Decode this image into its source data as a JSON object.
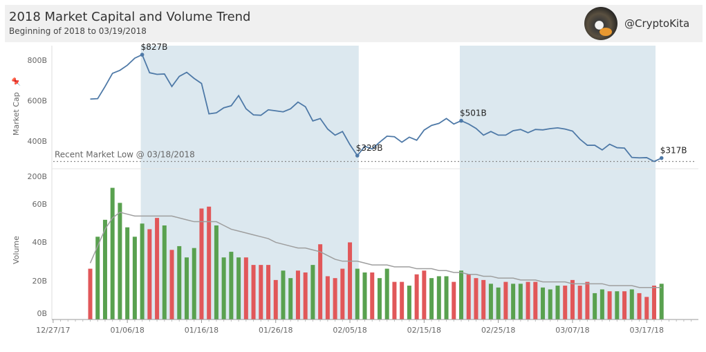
{
  "header": {
    "title": "2018 Market Capital and Volume Trend",
    "subtitle": "Beginning of 2018 to 03/19/2018",
    "handle": "@CryptoKita"
  },
  "chart_data": {
    "type": "line",
    "x_ticks": [
      "12/27/17",
      "01/06/18",
      "01/16/18",
      "01/26/18",
      "02/05/18",
      "02/15/18",
      "02/25/18",
      "03/07/18",
      "03/17/18"
    ],
    "market_cap": {
      "ylabel": "Market Cap",
      "y_ticks": [
        "400B",
        "600B",
        "800B"
      ],
      "start_date": "2018-01-01",
      "values": [
        608,
        610,
        670,
        735,
        750,
        775,
        810,
        827,
        738,
        730,
        732,
        670,
        720,
        740,
        710,
        685,
        535,
        540,
        565,
        575,
        625,
        560,
        530,
        528,
        555,
        550,
        545,
        560,
        593,
        570,
        500,
        512,
        460,
        430,
        448,
        383,
        329,
        375,
        362,
        395,
        425,
        422,
        395,
        420,
        405,
        455,
        478,
        488,
        512,
        485,
        501,
        485,
        463,
        430,
        448,
        430,
        430,
        452,
        458,
        442,
        458,
        456,
        462,
        466,
        460,
        450,
        410,
        380,
        380,
        357,
        385,
        368,
        366,
        320,
        318,
        319,
        300,
        317
      ],
      "annotations": [
        {
          "date": "2018-01-08",
          "label": "$827B"
        },
        {
          "date": "2018-02-06",
          "label": "$329B"
        },
        {
          "date": "2018-02-20",
          "label": "$501B"
        },
        {
          "date": "2018-03-19",
          "label": "$317B"
        }
      ],
      "reference_line": {
        "value": 300,
        "label": "Recent Market Low @ 03/18/2018"
      }
    },
    "volume": {
      "ylabel": "Volume",
      "y_ticks": [
        "0B",
        "20B",
        "40B",
        "60B",
        "200B"
      ],
      "up_color": "#59a14f",
      "down_color": "#e15759",
      "start_date": "2018-01-01",
      "bars": [
        {
          "v": 27,
          "d": "down"
        },
        {
          "v": 44,
          "d": "up"
        },
        {
          "v": 53,
          "d": "up"
        },
        {
          "v": 70,
          "d": "up"
        },
        {
          "v": 62,
          "d": "up"
        },
        {
          "v": 49,
          "d": "up"
        },
        {
          "v": 44,
          "d": "up"
        },
        {
          "v": 51,
          "d": "up"
        },
        {
          "v": 48,
          "d": "down"
        },
        {
          "v": 54,
          "d": "down"
        },
        {
          "v": 50,
          "d": "up"
        },
        {
          "v": 37,
          "d": "down"
        },
        {
          "v": 39,
          "d": "up"
        },
        {
          "v": 33,
          "d": "up"
        },
        {
          "v": 38,
          "d": "up"
        },
        {
          "v": 59,
          "d": "down"
        },
        {
          "v": 60,
          "d": "down"
        },
        {
          "v": 50,
          "d": "up"
        },
        {
          "v": 33,
          "d": "up"
        },
        {
          "v": 36,
          "d": "up"
        },
        {
          "v": 33,
          "d": "up"
        },
        {
          "v": 33,
          "d": "down"
        },
        {
          "v": 29,
          "d": "down"
        },
        {
          "v": 29,
          "d": "down"
        },
        {
          "v": 29,
          "d": "down"
        },
        {
          "v": 21,
          "d": "down"
        },
        {
          "v": 26,
          "d": "up"
        },
        {
          "v": 22,
          "d": "up"
        },
        {
          "v": 26,
          "d": "down"
        },
        {
          "v": 25,
          "d": "down"
        },
        {
          "v": 29,
          "d": "up"
        },
        {
          "v": 40,
          "d": "down"
        },
        {
          "v": 23,
          "d": "down"
        },
        {
          "v": 22,
          "d": "down"
        },
        {
          "v": 27,
          "d": "down"
        },
        {
          "v": 41,
          "d": "down"
        },
        {
          "v": 27,
          "d": "up"
        },
        {
          "v": 25,
          "d": "up"
        },
        {
          "v": 25,
          "d": "down"
        },
        {
          "v": 22,
          "d": "up"
        },
        {
          "v": 27,
          "d": "up"
        },
        {
          "v": 20,
          "d": "down"
        },
        {
          "v": 20,
          "d": "down"
        },
        {
          "v": 18,
          "d": "up"
        },
        {
          "v": 24,
          "d": "down"
        },
        {
          "v": 26,
          "d": "down"
        },
        {
          "v": 22,
          "d": "up"
        },
        {
          "v": 23,
          "d": "up"
        },
        {
          "v": 23,
          "d": "up"
        },
        {
          "v": 20,
          "d": "down"
        },
        {
          "v": 26,
          "d": "up"
        },
        {
          "v": 24,
          "d": "down"
        },
        {
          "v": 22,
          "d": "down"
        },
        {
          "v": 21,
          "d": "down"
        },
        {
          "v": 19,
          "d": "up"
        },
        {
          "v": 17,
          "d": "up"
        },
        {
          "v": 20,
          "d": "down"
        },
        {
          "v": 19,
          "d": "up"
        },
        {
          "v": 19,
          "d": "up"
        },
        {
          "v": 20,
          "d": "down"
        },
        {
          "v": 20,
          "d": "down"
        },
        {
          "v": 17,
          "d": "up"
        },
        {
          "v": 16,
          "d": "up"
        },
        {
          "v": 18,
          "d": "up"
        },
        {
          "v": 18,
          "d": "down"
        },
        {
          "v": 21,
          "d": "down"
        },
        {
          "v": 18,
          "d": "down"
        },
        {
          "v": 20,
          "d": "down"
        },
        {
          "v": 14,
          "d": "up"
        },
        {
          "v": 16,
          "d": "up"
        },
        {
          "v": 15,
          "d": "down"
        },
        {
          "v": 15,
          "d": "up"
        },
        {
          "v": 15,
          "d": "down"
        },
        {
          "v": 16,
          "d": "up"
        },
        {
          "v": 14,
          "d": "down"
        },
        {
          "v": 12,
          "d": "down"
        },
        {
          "v": 18,
          "d": "down"
        },
        {
          "v": 19,
          "d": "up"
        }
      ],
      "moving_average": [
        30,
        39,
        48,
        54,
        57,
        56,
        55,
        55,
        55,
        55,
        55,
        55,
        54,
        53,
        52,
        52,
        52,
        52,
        50,
        48,
        47,
        46,
        45,
        44,
        43,
        41,
        40,
        39,
        38,
        38,
        37,
        36,
        34,
        32,
        31,
        31,
        31,
        30,
        29,
        29,
        29,
        28,
        28,
        28,
        27,
        27,
        27,
        26,
        26,
        25,
        25,
        24,
        24,
        23,
        23,
        22,
        22,
        22,
        21,
        21,
        21,
        20,
        20,
        20,
        20,
        19,
        19,
        19,
        19,
        19,
        18,
        18,
        18,
        18,
        17,
        17,
        17,
        17
      ]
    },
    "shaded_ranges": [
      {
        "from": "2018-01-08",
        "to": "2018-02-06"
      },
      {
        "from": "2018-02-20",
        "to": "2018-03-18"
      }
    ],
    "colors": {
      "line": "#4e79a7",
      "shade": "#dce8ef",
      "ma": "#9e9e9e"
    }
  }
}
